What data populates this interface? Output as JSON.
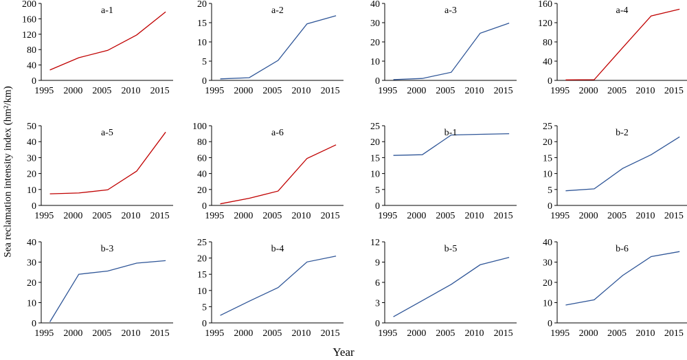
{
  "figure": {
    "ylabel": "Sea reclamation intensity index (hm²/km)",
    "xlabel": "Year"
  },
  "chart_data": [
    {
      "type": "line",
      "title": "a-1",
      "x": [
        1996,
        2001,
        2006,
        2011,
        2016
      ],
      "y": [
        27,
        59,
        78,
        118,
        178
      ],
      "ylim": [
        0,
        200
      ],
      "yticks": [
        0,
        40,
        80,
        120,
        160,
        200
      ],
      "xticks": [
        1995,
        2000,
        2005,
        2010,
        2015
      ],
      "color": "#c00000"
    },
    {
      "type": "line",
      "title": "a-2",
      "x": [
        1996,
        2001,
        2006,
        2011,
        2016
      ],
      "y": [
        0.4,
        0.7,
        5.2,
        14.7,
        16.8
      ],
      "ylim": [
        0,
        20
      ],
      "yticks": [
        0,
        5,
        10,
        15,
        20
      ],
      "xticks": [
        1995,
        2000,
        2005,
        2010,
        2015
      ],
      "color": "#2e5597"
    },
    {
      "type": "line",
      "title": "a-3",
      "x": [
        1996,
        2001,
        2006,
        2011,
        2016
      ],
      "y": [
        0.4,
        1,
        4.2,
        24.5,
        29.8
      ],
      "ylim": [
        0,
        40
      ],
      "yticks": [
        0,
        10,
        20,
        30,
        40
      ],
      "xticks": [
        1995,
        2000,
        2005,
        2010,
        2015
      ],
      "color": "#2e5597"
    },
    {
      "type": "line",
      "title": "a-4",
      "x": [
        1996,
        2001,
        2006,
        2011,
        2016
      ],
      "y": [
        1,
        1.5,
        68,
        134,
        148
      ],
      "ylim": [
        0,
        160
      ],
      "yticks": [
        0,
        40,
        80,
        120,
        160
      ],
      "xticks": [
        1995,
        2000,
        2005,
        2010,
        2015
      ],
      "color": "#c00000"
    },
    {
      "type": "line",
      "title": "a-5",
      "x": [
        1996,
        2001,
        2006,
        2011,
        2016
      ],
      "y": [
        7.3,
        7.8,
        9.8,
        21.5,
        46
      ],
      "ylim": [
        0,
        50
      ],
      "yticks": [
        0,
        10,
        20,
        30,
        40,
        50
      ],
      "xticks": [
        1995,
        2000,
        2005,
        2010,
        2015
      ],
      "color": "#c00000"
    },
    {
      "type": "line",
      "title": "a-6",
      "x": [
        1996,
        2001,
        2006,
        2011,
        2016
      ],
      "y": [
        2,
        9,
        18,
        59,
        76
      ],
      "ylim": [
        0,
        100
      ],
      "yticks": [
        0,
        20,
        40,
        60,
        80,
        100
      ],
      "xticks": [
        1995,
        2000,
        2005,
        2010,
        2015
      ],
      "color": "#c00000"
    },
    {
      "type": "line",
      "title": "b-1",
      "x": [
        1996,
        2001,
        2006,
        2011,
        2016
      ],
      "y": [
        15.7,
        15.9,
        22.1,
        22.3,
        22.5
      ],
      "ylim": [
        0,
        25
      ],
      "yticks": [
        0,
        5,
        10,
        15,
        20,
        25
      ],
      "xticks": [
        1995,
        2000,
        2005,
        2010,
        2015
      ],
      "color": "#2e5597"
    },
    {
      "type": "line",
      "title": "b-2",
      "x": [
        1996,
        2001,
        2006,
        2011,
        2016
      ],
      "y": [
        4.6,
        5.2,
        11.6,
        15.9,
        21.5
      ],
      "ylim": [
        0,
        25
      ],
      "yticks": [
        0,
        5,
        10,
        15,
        20,
        25
      ],
      "xticks": [
        1995,
        2000,
        2005,
        2010,
        2015
      ],
      "color": "#2e5597"
    },
    {
      "type": "line",
      "title": "b-3",
      "x": [
        1996,
        2001,
        2006,
        2011,
        2016
      ],
      "y": [
        0.5,
        24,
        25.6,
        29.5,
        30.7
      ],
      "ylim": [
        0,
        40
      ],
      "yticks": [
        0,
        10,
        20,
        30,
        40
      ],
      "xticks": [
        1995,
        2000,
        2005,
        2010,
        2015
      ],
      "color": "#2e5597"
    },
    {
      "type": "line",
      "title": "b-4",
      "x": [
        1996,
        2001,
        2006,
        2011,
        2016
      ],
      "y": [
        2.3,
        6.7,
        10.9,
        18.8,
        20.6
      ],
      "ylim": [
        0,
        25
      ],
      "yticks": [
        0,
        5,
        10,
        15,
        20,
        25
      ],
      "xticks": [
        1995,
        2000,
        2005,
        2010,
        2015
      ],
      "color": "#2e5597"
    },
    {
      "type": "line",
      "title": "b-5",
      "x": [
        1996,
        2001,
        2006,
        2011,
        2016
      ],
      "y": [
        0.9,
        3.3,
        5.7,
        8.6,
        9.7
      ],
      "ylim": [
        0,
        12
      ],
      "yticks": [
        0,
        3,
        6,
        9,
        12
      ],
      "xticks": [
        1995,
        2000,
        2005,
        2010,
        2015
      ],
      "color": "#2e5597"
    },
    {
      "type": "line",
      "title": "b-6",
      "x": [
        1996,
        2001,
        2006,
        2011,
        2016
      ],
      "y": [
        8.8,
        11.4,
        23.4,
        32.7,
        35.2
      ],
      "ylim": [
        0,
        40
      ],
      "yticks": [
        0,
        10,
        20,
        30,
        40
      ],
      "xticks": [
        1995,
        2000,
        2005,
        2010,
        2015
      ],
      "color": "#2e5597"
    }
  ]
}
